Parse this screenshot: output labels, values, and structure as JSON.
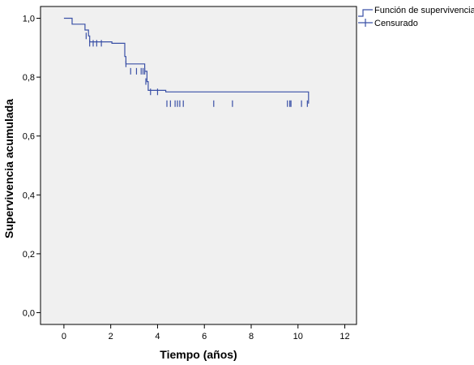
{
  "chart_data": {
    "type": "line",
    "title": "",
    "xlabel": "Tiempo (años)",
    "ylabel": "Supervivencia acumulada",
    "xlim": [
      -1,
      12.5
    ],
    "ylim": [
      -0.04,
      1.04
    ],
    "x_ticks": [
      0,
      2,
      4,
      6,
      8,
      10,
      12
    ],
    "x_tick_labels": [
      "0",
      "2",
      "4",
      "6",
      "8",
      "10",
      "12"
    ],
    "y_ticks": [
      0,
      0.2,
      0.4,
      0.6,
      0.8,
      1.0
    ],
    "y_tick_labels": [
      "0,0",
      "0,2",
      "0,4",
      "0,6",
      "0,8",
      "1,0"
    ],
    "grid": false,
    "legend_position": "top-right",
    "colors": {
      "line": "#3a50a6",
      "plot_bg": "#f0f0f0"
    },
    "series": [
      {
        "name": "Función de supervivencia",
        "type": "step",
        "x": [
          0,
          0.25,
          0.35,
          0.9,
          1.05,
          1.1,
          2.05,
          2.6,
          2.65,
          3.45,
          3.55,
          3.6,
          4.35,
          10.45
        ],
        "y": [
          1.0,
          1.0,
          0.98,
          0.96,
          0.94,
          0.92,
          0.915,
          0.87,
          0.845,
          0.82,
          0.785,
          0.755,
          0.75,
          0.71
        ]
      },
      {
        "name": "Censurado",
        "type": "censored",
        "x": [
          0.95,
          1.1,
          1.25,
          1.4,
          1.6,
          2.65,
          2.85,
          3.1,
          3.3,
          3.38,
          3.45,
          3.5,
          3.7,
          4.0,
          4.4,
          4.55,
          4.75,
          4.85,
          4.95,
          5.1,
          6.4,
          7.2,
          9.55,
          9.65,
          9.7,
          10.15,
          10.4
        ],
        "y": [
          0.94,
          0.915,
          0.915,
          0.915,
          0.915,
          0.845,
          0.82,
          0.82,
          0.82,
          0.82,
          0.82,
          0.785,
          0.75,
          0.75,
          0.71,
          0.71,
          0.71,
          0.71,
          0.71,
          0.71,
          0.71,
          0.71,
          0.71,
          0.71,
          0.71,
          0.71,
          0.71
        ]
      }
    ]
  }
}
